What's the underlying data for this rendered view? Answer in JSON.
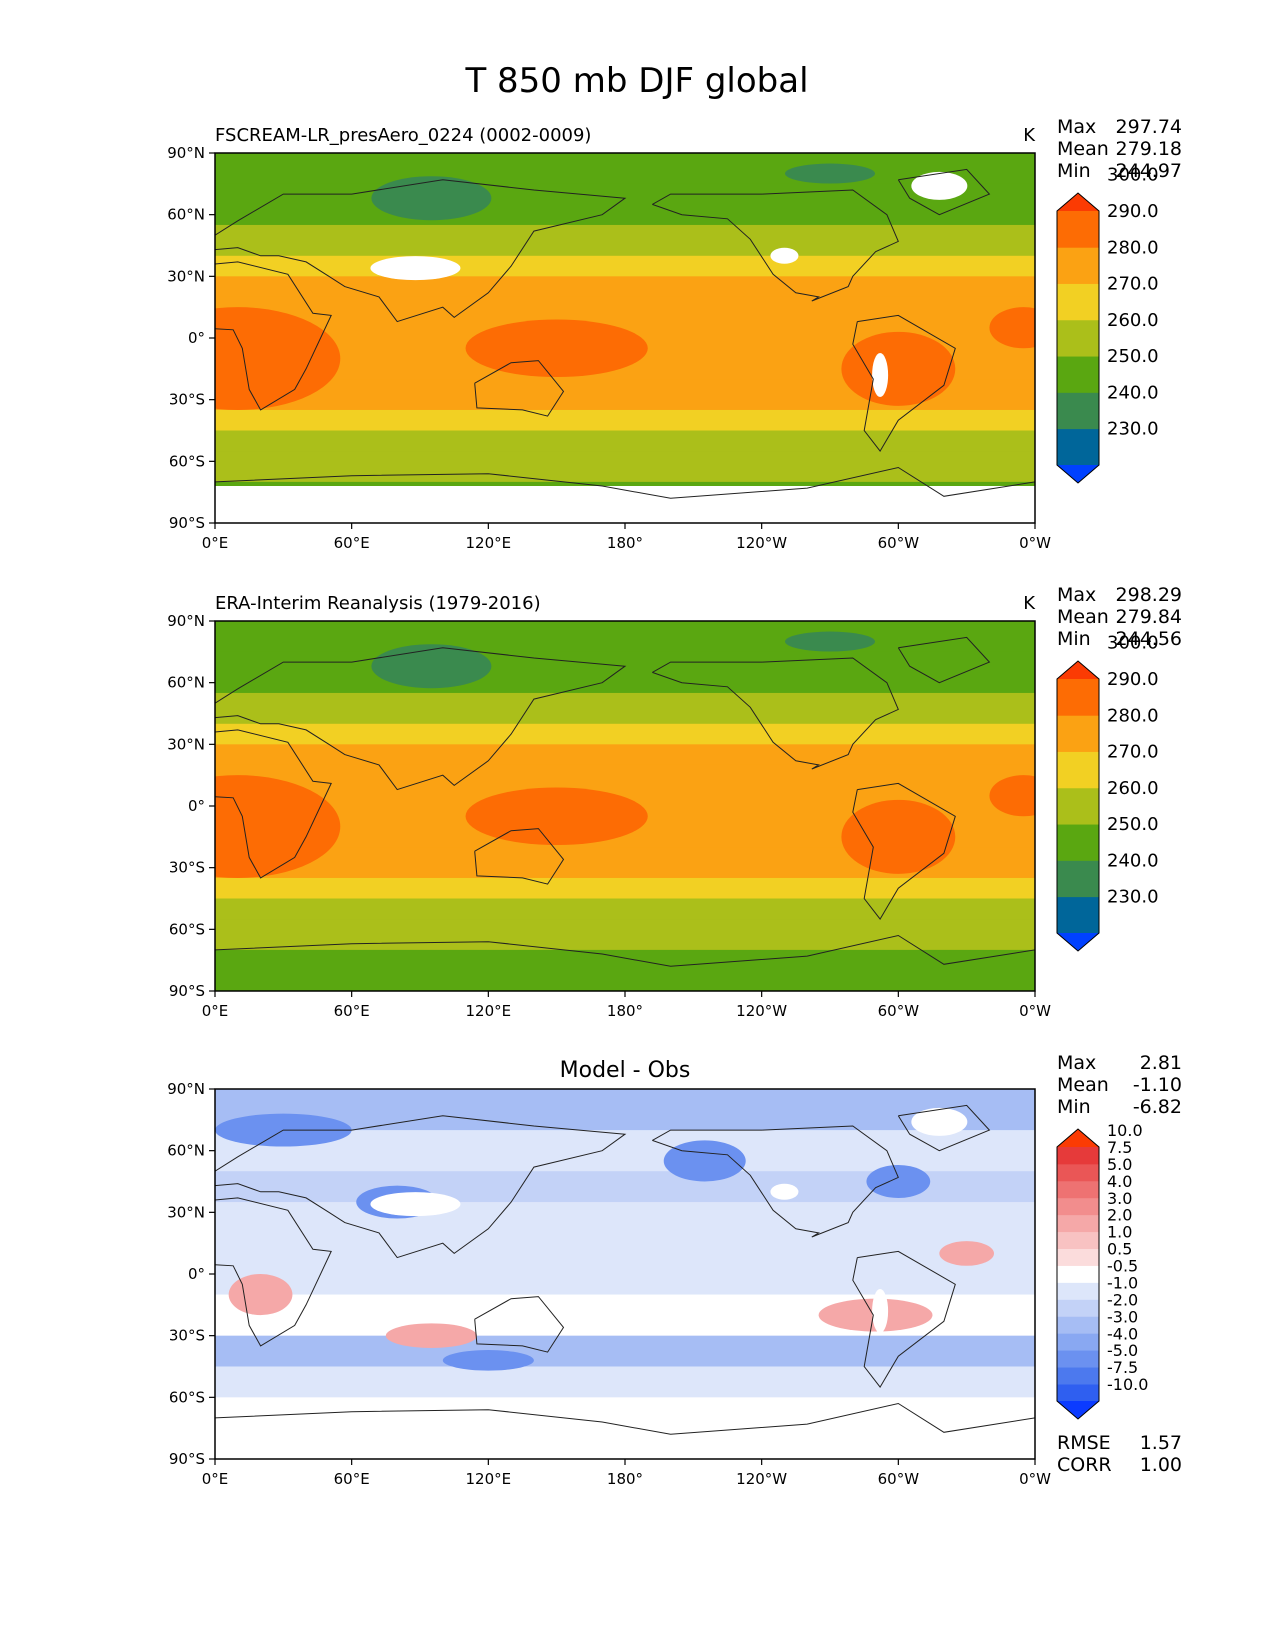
{
  "figure": {
    "title": "T 850 mb DJF global"
  },
  "chart_data": [
    {
      "type": "heatmap",
      "panel": "test",
      "left_title": "FSCREAM-LR_presAero_0224 (0002-0009)",
      "center_title": "",
      "units": "K",
      "stats": {
        "max": "297.74",
        "mean": "279.18",
        "min": "244.97"
      },
      "colorbar": {
        "colors": [
          "#0041ff",
          "#00669a",
          "#3a8a4e",
          "#5aa711",
          "#abbf1a",
          "#f2d023",
          "#fba213",
          "#fd6c04",
          "#fb3b03"
        ],
        "ticks": [
          "230.0",
          "240.0",
          "250.0",
          "260.0",
          "270.0",
          "280.0",
          "290.0",
          "300.0"
        ]
      },
      "xticks": [
        "0°E",
        "60°E",
        "120°E",
        "180°",
        "120°W",
        "60°W",
        "0°W"
      ],
      "yticks": [
        "90°N",
        "60°N",
        "30°N",
        "0°",
        "30°S",
        "60°S",
        "90°S"
      ],
      "xlim": [
        0,
        360
      ],
      "ylim": [
        -90,
        90
      ]
    },
    {
      "type": "heatmap",
      "panel": "reference",
      "left_title": "ERA-Interim Reanalysis (1979-2016)",
      "center_title": "",
      "units": "K",
      "stats": {
        "max": "298.29",
        "mean": "279.84",
        "min": "244.56"
      },
      "colorbar": {
        "colors": [
          "#0041ff",
          "#00669a",
          "#3a8a4e",
          "#5aa711",
          "#abbf1a",
          "#f2d023",
          "#fba213",
          "#fd6c04",
          "#fb3b03"
        ],
        "ticks": [
          "230.0",
          "240.0",
          "250.0",
          "260.0",
          "270.0",
          "280.0",
          "290.0",
          "300.0"
        ]
      },
      "xticks": [
        "0°E",
        "60°E",
        "120°E",
        "180°",
        "120°W",
        "60°W",
        "0°W"
      ],
      "yticks": [
        "90°N",
        "60°N",
        "30°N",
        "0°",
        "30°S",
        "60°S",
        "90°S"
      ],
      "xlim": [
        0,
        360
      ],
      "ylim": [
        -90,
        90
      ]
    },
    {
      "type": "heatmap",
      "panel": "difference",
      "left_title": "",
      "center_title": "Model - Obs",
      "units": "",
      "stats": {
        "max": "2.81",
        "mean": "-1.10",
        "min": "-6.82"
      },
      "metrics": {
        "rmse_label": "RMSE",
        "rmse": "1.57",
        "corr_label": "CORR",
        "corr": "1.00"
      },
      "colorbar": {
        "colors": [
          "#0b3bff",
          "#2f5ff0",
          "#4c79ee",
          "#6b91f0",
          "#89a8f2",
          "#a6bdf4",
          "#c3d2f7",
          "#dde6fa",
          "#ffffff",
          "#fbdcdc",
          "#f8c2c2",
          "#f5a8a8",
          "#f28d8d",
          "#ee7272",
          "#ea5656",
          "#e63a3a",
          "#fb3b03"
        ],
        "ticks": [
          "-10.0",
          "-7.5",
          "-5.0",
          "-4.0",
          "-3.0",
          "-2.0",
          "-1.0",
          "-0.5",
          "0.5",
          "1.0",
          "2.0",
          "3.0",
          "4.0",
          "5.0",
          "7.5",
          "10.0"
        ]
      },
      "xticks": [
        "0°E",
        "60°E",
        "120°E",
        "180°",
        "120°W",
        "60°W",
        "0°W"
      ],
      "yticks": [
        "90°N",
        "60°N",
        "30°N",
        "0°",
        "30°S",
        "60°S",
        "90°S"
      ],
      "xlim": [
        0,
        360
      ],
      "ylim": [
        -90,
        90
      ]
    }
  ]
}
